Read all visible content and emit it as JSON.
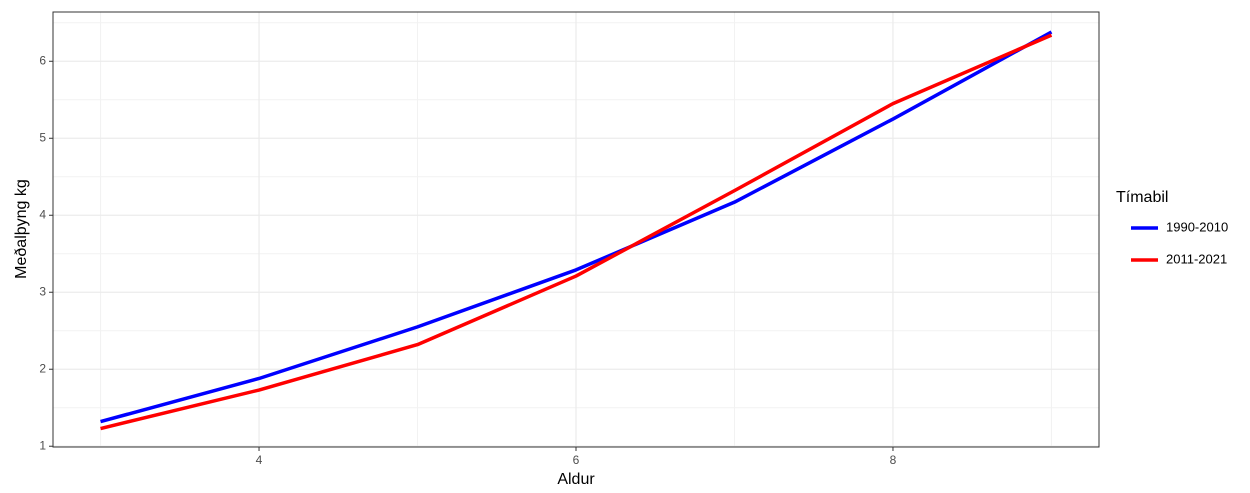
{
  "chart_data": {
    "type": "line",
    "x_label": "Aldur",
    "y_label": "Meðalþyng kg",
    "x": [
      3,
      4,
      5,
      6,
      7,
      8,
      9
    ],
    "series": [
      {
        "name": "1990-2010",
        "color": "#0000ff",
        "values": [
          1.32,
          1.88,
          2.55,
          3.29,
          4.17,
          5.25,
          6.38
        ]
      },
      {
        "name": "2011-2021",
        "color": "#ff0000",
        "values": [
          1.23,
          1.73,
          2.32,
          3.21,
          4.32,
          5.45,
          6.34
        ]
      }
    ],
    "xlim": [
      2.7,
      9.3
    ],
    "xticks": [
      4,
      6,
      8
    ],
    "ylim": [
      0.99,
      6.64
    ],
    "yticks": [
      1,
      2,
      3,
      4,
      5,
      6
    ],
    "grid": true,
    "minor_grid": true,
    "legend_title": "Tímabil",
    "legend_position": "right"
  }
}
